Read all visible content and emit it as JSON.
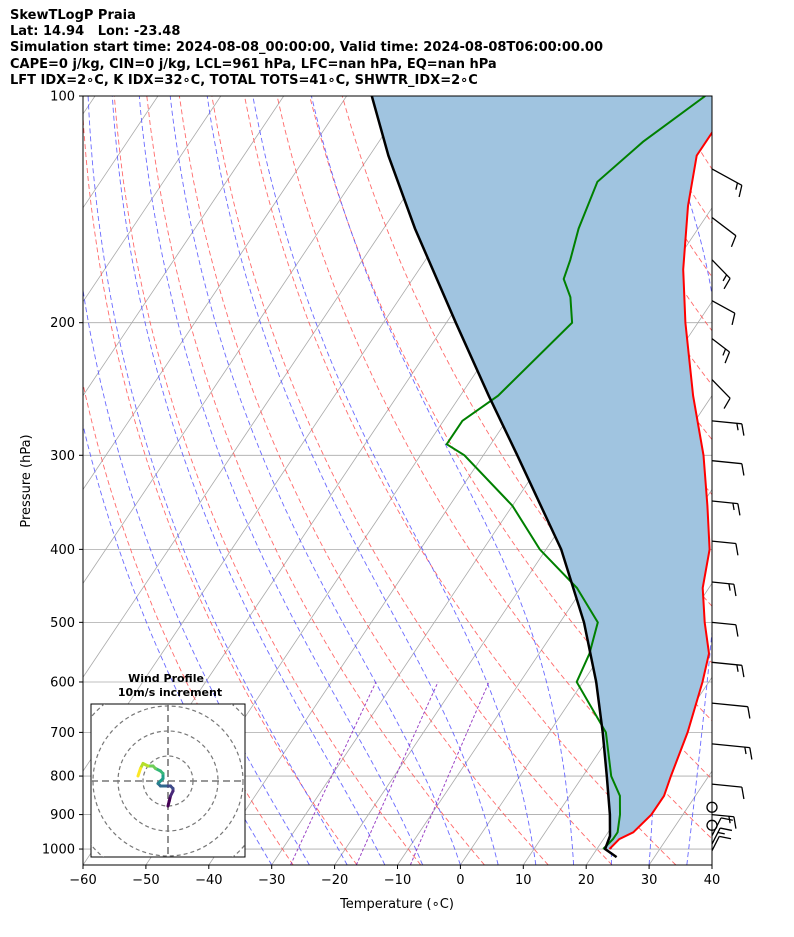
{
  "header": {
    "line1": "SkewTLogP Praia",
    "line2": "Lat: 14.94   Lon: -23.48",
    "line3": "Simulation start time: 2024-08-08_00:00:00, Valid time: 2024-08-08T06:00:00.00",
    "line4": "CAPE=0 j/kg, CIN=0 j/kg, LCL=961 hPa, LFC=nan hPa, EQ=nan hPa",
    "line5": "LFT IDX=2∘C, K IDX=32∘C, TOTAL TOTS=41∘C, SHWTR_IDX=2∘C"
  },
  "chart_data": {
    "type": "line",
    "chart_kind": "skew-T log-P",
    "xlabel": "Temperature (∘C)",
    "ylabel": "Pressure (hPa)",
    "xlim": [
      -60,
      40
    ],
    "ylim": [
      1050,
      100
    ],
    "y_scale": "log",
    "grid": true,
    "x_ticks": [
      "−60",
      "−50",
      "−40",
      "−30",
      "−20",
      "−10",
      "0",
      "10",
      "20",
      "30",
      "40"
    ],
    "y_ticks": [
      100,
      200,
      300,
      400,
      500,
      600,
      700,
      800,
      900,
      1000
    ],
    "colors": {
      "temperature": "#ff0000",
      "dewpoint": "#008000",
      "parcel": "#000000",
      "shade": "#a0c4e0",
      "dry_adiabat": "#ff5050",
      "moist_adiabat": "#5050ff",
      "mixing_ratio": "#9030c0",
      "isotherm": "#aaaaaa"
    },
    "series": [
      {
        "key": "temperature",
        "points": [
          [
            1000,
            22
          ],
          [
            970,
            22.5
          ],
          [
            950,
            24
          ],
          [
            900,
            25
          ],
          [
            850,
            25
          ],
          [
            800,
            24
          ],
          [
            700,
            22
          ],
          [
            600,
            19
          ],
          [
            550,
            17
          ],
          [
            500,
            13
          ],
          [
            450,
            9
          ],
          [
            400,
            6
          ],
          [
            350,
            1
          ],
          [
            300,
            -5
          ],
          [
            250,
            -13
          ],
          [
            200,
            -22
          ],
          [
            170,
            -28
          ],
          [
            140,
            -34
          ],
          [
            120,
            -38
          ],
          [
            110,
            -38
          ],
          [
            100,
            -37
          ]
        ]
      },
      {
        "key": "dewpoint",
        "points": [
          [
            1000,
            21
          ],
          [
            970,
            21.5
          ],
          [
            950,
            21.5
          ],
          [
            900,
            20
          ],
          [
            850,
            18
          ],
          [
            800,
            14.5
          ],
          [
            700,
            9
          ],
          [
            600,
            -1
          ],
          [
            550,
            -2
          ],
          [
            500,
            -4
          ],
          [
            450,
            -11
          ],
          [
            400,
            -21
          ],
          [
            350,
            -30
          ],
          [
            300,
            -43
          ],
          [
            290,
            -47
          ],
          [
            270,
            -47
          ],
          [
            250,
            -44
          ],
          [
            200,
            -40
          ],
          [
            185,
            -43
          ],
          [
            175,
            -46
          ],
          [
            165,
            -47
          ],
          [
            150,
            -49
          ],
          [
            130,
            -51
          ],
          [
            115,
            -48
          ],
          [
            100,
            -43
          ]
        ]
      },
      {
        "key": "parcel",
        "points": [
          [
            1025,
            24
          ],
          [
            1000,
            21.3
          ],
          [
            961,
            20.7
          ],
          [
            900,
            18.4
          ],
          [
            800,
            13.8
          ],
          [
            700,
            8.5
          ],
          [
            600,
            2.1
          ],
          [
            500,
            -6.2
          ],
          [
            400,
            -17.6
          ],
          [
            300,
            -34.6
          ],
          [
            250,
            -45.5
          ],
          [
            200,
            -58.5
          ],
          [
            150,
            -75
          ],
          [
            120,
            -87
          ],
          [
            100,
            -96
          ]
        ]
      }
    ],
    "wind_barbs": {
      "pressures_hPa": [
        125,
        145,
        165,
        187,
        210,
        238,
        270,
        305,
        345,
        390,
        442,
        500,
        565,
        640,
        725,
        820,
        900,
        960,
        985,
        1005
      ],
      "calm_markers_hPa": [
        880,
        930
      ]
    },
    "inset": {
      "title": "Wind Profile",
      "subtitle": "10m/s increment",
      "type": "hodograph",
      "ring_increment_ms": 10,
      "hodograph_uv": [
        [
          0,
          -10
        ],
        [
          0.5,
          -8
        ],
        [
          1,
          -6
        ],
        [
          2,
          -4
        ],
        [
          2,
          -3
        ],
        [
          1,
          -2
        ],
        [
          -1,
          -2
        ],
        [
          -3,
          -2
        ],
        [
          -4,
          -1
        ],
        [
          -3,
          0
        ],
        [
          -2,
          1
        ],
        [
          -2,
          3
        ],
        [
          -3,
          4
        ],
        [
          -5,
          5
        ],
        [
          -6,
          6
        ],
        [
          -8,
          6
        ],
        [
          -10,
          7
        ],
        [
          -11,
          5
        ],
        [
          -12,
          2
        ]
      ]
    }
  }
}
